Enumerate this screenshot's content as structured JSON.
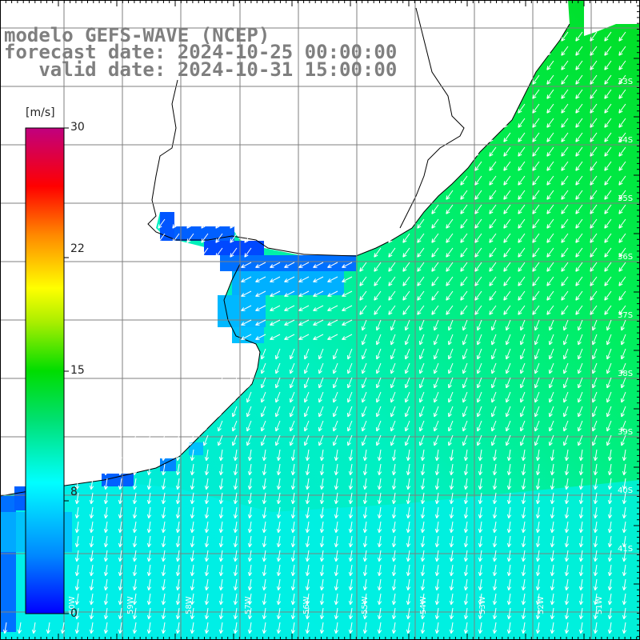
{
  "title": {
    "line1": "modelo GEFS-WAVE (NCEP)",
    "line2": "forecast date: 2024-10-25 00:00:00",
    "line3": "   valid date: 2024-10-31 15:00:00"
  },
  "colorbar": {
    "unit": "[m/s]",
    "ticks": [
      {
        "label": "30",
        "value": 30
      },
      {
        "label": "22",
        "value": 22
      },
      {
        "label": "15",
        "value": 15
      },
      {
        "label": "8",
        "value": 8
      },
      {
        "label": "0",
        "value": 0
      }
    ],
    "min": 0,
    "max": 30,
    "colors": [
      "#0000ff",
      "#00aaff",
      "#00ffff",
      "#00e0a0",
      "#00dd00",
      "#aaee00",
      "#ffff00",
      "#ffaa00",
      "#ff3300",
      "#ff0000",
      "#e0006a",
      "#c0007f"
    ]
  },
  "grid": {
    "lat_labels": [
      "33S",
      "34S",
      "35S",
      "36S",
      "37S",
      "38S",
      "39S",
      "40S",
      "41S"
    ],
    "lon_labels": [
      "60W",
      "59W",
      "58W",
      "57W",
      "56W",
      "55W",
      "54W",
      "53W",
      "52W",
      "51W"
    ]
  },
  "map_colors": {
    "land": "#ffffff",
    "coast": "#000000",
    "gridline": "#7f7f7f",
    "arrow": "#ffffff"
  },
  "wind_field": {
    "calm_inland": "#0055ff",
    "river_estuary": "#00c8ff",
    "open_ocean": "#00ffcc",
    "coastal_strong": "#00ee44"
  }
}
